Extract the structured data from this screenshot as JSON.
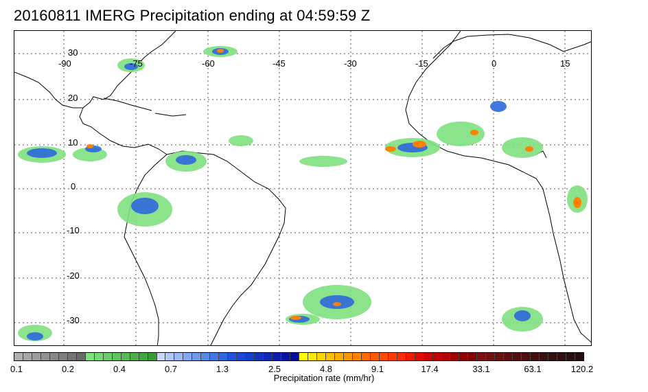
{
  "title": "20160811 IMERG Precipitation ending at 04:59:59 Z",
  "map": {
    "lon_labels": [
      "-90",
      "-75",
      "-60",
      "-45",
      "-30",
      "-15",
      "0",
      "15"
    ],
    "lat_labels": [
      "30",
      "20",
      "10",
      "0",
      "-10",
      "-20",
      "-30"
    ],
    "grid": true,
    "grid_style": "dotted"
  },
  "colorbar": {
    "label": "Precipitation rate (mm/hr)",
    "tick_labels": [
      "0.1",
      "0.2",
      "0.4",
      "0.7",
      "1.3",
      "2.5",
      "4.8",
      "9.1",
      "17.4",
      "33.1",
      "63.1",
      "120.2"
    ],
    "colors": [
      "#b0b0b0",
      "#a6a6a6",
      "#9c9c9c",
      "#929292",
      "#888888",
      "#7e7e7e",
      "#747474",
      "#6a6a6a",
      "#7fe07f",
      "#76d676",
      "#6ccc6c",
      "#62c262",
      "#58b858",
      "#4eae4e",
      "#44a444",
      "#3a9a3a",
      "#c8d8ff",
      "#b2c8fa",
      "#9cb8f5",
      "#86a8f0",
      "#7098eb",
      "#5a88e6",
      "#4478e1",
      "#2e68dc",
      "#2050e0",
      "#1c46d6",
      "#183ccc",
      "#1432c2",
      "#1028b8",
      "#0c1eae",
      "#0814a4",
      "#040a9a",
      "#ffff00",
      "#ffea00",
      "#ffd500",
      "#ffc000",
      "#ffab00",
      "#ff9600",
      "#ff8100",
      "#ff6c00",
      "#ff5a00",
      "#ff4a00",
      "#ff3a00",
      "#ff2a00",
      "#f01a00",
      "#e00a00",
      "#d00000",
      "#c00000",
      "#b00000",
      "#a00000",
      "#900000",
      "#800000",
      "#7a1010",
      "#701010",
      "#661010",
      "#5c1010",
      "#521010",
      "#4a1010",
      "#421010",
      "#3a1010",
      "#341010",
      "#2e1010",
      "#281010",
      "#221010"
    ]
  }
}
